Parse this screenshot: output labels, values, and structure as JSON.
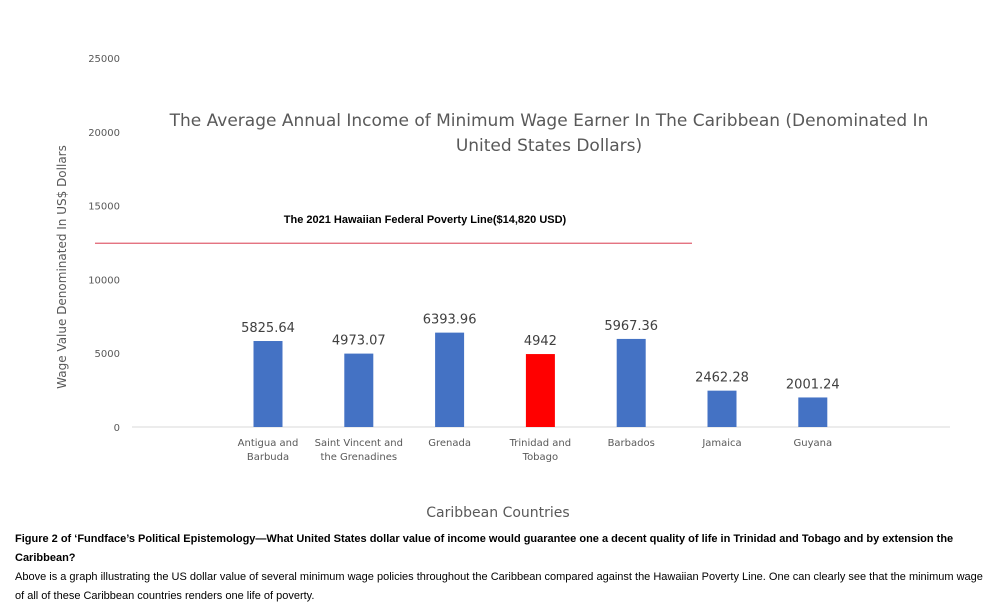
{
  "chart_data": {
    "type": "bar",
    "title": "The Average Annual Income of Minimum Wage Earner In The Caribbean (Denominated In United States Dollars)",
    "title_lines": [
      "The Average Annual Income of Minimum Wage Earner In The Caribbean (Denominated In",
      "United States Dollars)"
    ],
    "xlabel": "Caribbean Countries",
    "ylabel": "Wage Value Denominated In US$ Dollars",
    "ylim": [
      0,
      25000
    ],
    "yticks": [
      0,
      5000,
      10000,
      15000,
      20000,
      25000
    ],
    "grid": false,
    "categories": [
      "Antigua and Barbuda",
      "Saint Vincent and the Grenadines",
      "Grenada",
      "Trinidad and Tobago",
      "Barbados",
      "Jamaica",
      "Guyana"
    ],
    "category_lines": [
      [
        "Antigua and",
        "Barbuda"
      ],
      [
        "Saint Vincent and",
        "the Grenadines"
      ],
      [
        "Grenada"
      ],
      [
        "Trinidad and",
        "Tobago"
      ],
      [
        "Barbados"
      ],
      [
        "Jamaica"
      ],
      [
        "Guyana"
      ]
    ],
    "values": [
      5825.64,
      4973.07,
      6393.96,
      4942,
      5967.36,
      2462.28,
      2001.24
    ],
    "value_labels": [
      "5825.64",
      "4973.07",
      "6393.96",
      "4942",
      "5967.36",
      "2462.28",
      "2001.24"
    ],
    "bar_colors": [
      "#4472c4",
      "#4472c4",
      "#4472c4",
      "#ff0000",
      "#4472c4",
      "#4472c4",
      "#4472c4"
    ],
    "reference_line": {
      "label": "The 2021 Hawaiian Federal Poverty Line($14,820 USD)",
      "color": "#e06070"
    }
  },
  "caption": {
    "bold": "Figure 2 of ‘Fundface’s Political Epistemology—What United States dollar value of income would guarantee one a decent quality of life in Trinidad and Tobago and by extension the Caribbean?",
    "text": "Above is a graph illustrating the US dollar value of several minimum wage policies throughout the Caribbean compared against the Hawaiian Poverty Line. One can clearly see that the minimum wage of all of these Caribbean countries renders one life of poverty."
  }
}
